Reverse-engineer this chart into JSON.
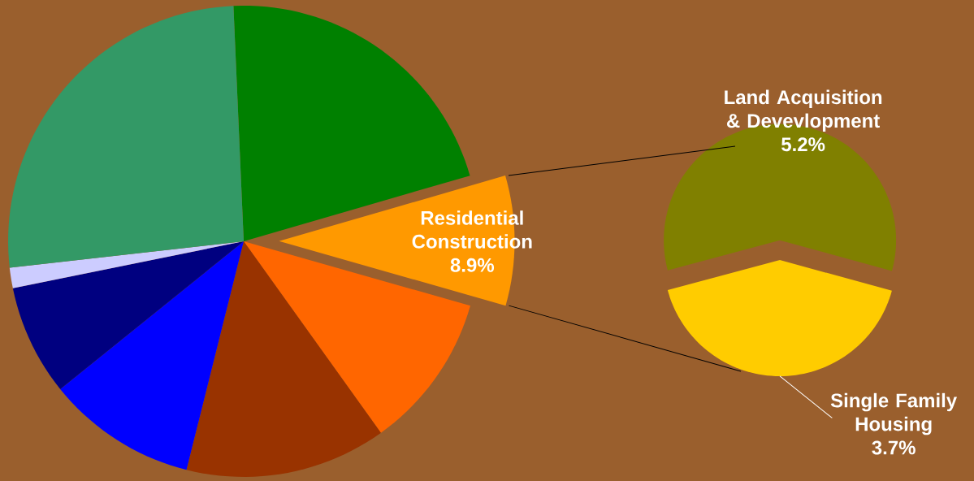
{
  "chart_data": [
    {
      "type": "pie",
      "categories": [
        null,
        "Residential Construction",
        null,
        null,
        null,
        null,
        null,
        null
      ],
      "values": [
        21.2,
        8.9,
        10.7,
        13.8,
        10.3,
        7.6,
        1.4,
        26.1
      ],
      "colors": [
        "#008000",
        "#ff9900",
        "#ff6600",
        "#993300",
        "#0000ff",
        "#000080",
        "#ccccff",
        "#339966"
      ],
      "value_labels": [
        null,
        "8.9%",
        null,
        null,
        null,
        null,
        null,
        null
      ]
    },
    {
      "type": "pie",
      "categories": [
        "Land Acquisition & Devevlopment",
        "Single Family Housing"
      ],
      "values": [
        5.2,
        3.7
      ],
      "colors": [
        "#808000",
        "#ffcc00"
      ],
      "value_labels": [
        "5.2%",
        "3.7%"
      ]
    }
  ]
}
